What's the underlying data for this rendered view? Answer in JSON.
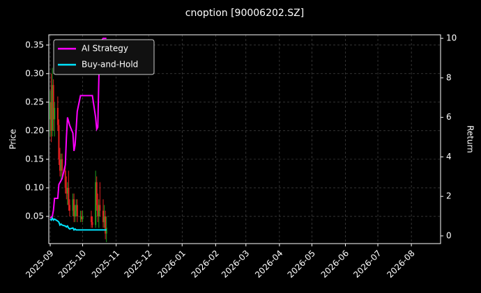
{
  "chart_data": {
    "type": "candlestick",
    "title": "cnoption [90006202.SZ]",
    "ylabel": "Price",
    "y2label": "Return",
    "x": [
      0,
      1,
      2,
      3,
      4,
      7,
      8,
      9,
      10,
      11,
      14,
      15,
      16,
      17,
      18,
      21,
      22,
      23,
      24,
      25,
      28,
      29,
      30,
      38,
      39,
      42,
      43,
      44,
      45,
      46,
      49,
      50,
      51,
      52
    ],
    "open": [
      0.22,
      0.25,
      0.2,
      0.28,
      0.22,
      0.24,
      0.21,
      0.15,
      0.13,
      0.15,
      0.13,
      0.1,
      0.09,
      0.1,
      0.07,
      0.06,
      0.08,
      0.05,
      0.06,
      0.07,
      0.05,
      0.05,
      0.045,
      0.05,
      0.04,
      0.035,
      0.11,
      0.07,
      0.05,
      0.07,
      0.06,
      0.04,
      0.05,
      0.02
    ],
    "high": [
      0.27,
      0.3,
      0.31,
      0.29,
      0.25,
      0.26,
      0.22,
      0.17,
      0.16,
      0.16,
      0.14,
      0.12,
      0.11,
      0.13,
      0.08,
      0.09,
      0.09,
      0.07,
      0.08,
      0.08,
      0.06,
      0.06,
      0.06,
      0.06,
      0.05,
      0.13,
      0.12,
      0.09,
      0.08,
      0.11,
      0.08,
      0.07,
      0.06,
      0.05
    ],
    "low": [
      0.19,
      0.18,
      0.19,
      0.2,
      0.19,
      0.2,
      0.14,
      0.12,
      0.11,
      0.12,
      0.09,
      0.08,
      0.07,
      0.06,
      0.05,
      0.05,
      0.04,
      0.04,
      0.05,
      0.04,
      0.04,
      0.04,
      0.04,
      0.03,
      0.03,
      0.03,
      0.06,
      0.04,
      0.03,
      0.05,
      0.03,
      0.03,
      0.01,
      0.005
    ],
    "close": [
      0.25,
      0.2,
      0.28,
      0.22,
      0.24,
      0.21,
      0.15,
      0.13,
      0.15,
      0.13,
      0.1,
      0.09,
      0.1,
      0.07,
      0.06,
      0.08,
      0.05,
      0.06,
      0.07,
      0.05,
      0.05,
      0.045,
      0.05,
      0.04,
      0.035,
      0.11,
      0.07,
      0.05,
      0.07,
      0.06,
      0.04,
      0.05,
      0.02,
      0.03
    ],
    "up_color": "#1f9e1f",
    "down_color": "#e02020",
    "series": [
      {
        "name": "AI Strategy",
        "color": "#ff00ff",
        "axis": "y2",
        "values": [
          0.9,
          0.95,
          1.0,
          1.3,
          1.9,
          1.9,
          2.6,
          2.7,
          2.8,
          2.9,
          3.6,
          5.0,
          6.0,
          5.8,
          5.6,
          5.2,
          4.3,
          4.6,
          5.4,
          6.3,
          7.1,
          7.1,
          7.1,
          7.1,
          7.1,
          6.0,
          5.4,
          5.5,
          8.0,
          9.8,
          10.0,
          10.0,
          10.0,
          10.0
        ]
      },
      {
        "name": "Buy-and-Hold",
        "color": "#00e5ff",
        "axis": "y2",
        "values": [
          0.85,
          0.8,
          0.9,
          0.8,
          0.85,
          0.75,
          0.7,
          0.55,
          0.6,
          0.55,
          0.5,
          0.45,
          0.5,
          0.4,
          0.35,
          0.4,
          0.3,
          0.35,
          0.3,
          0.3,
          0.3,
          0.3,
          0.3,
          0.3,
          0.3,
          0.3,
          0.3,
          0.3,
          0.3,
          0.3,
          0.3,
          0.3,
          0.3,
          0.3
        ]
      }
    ],
    "xlim": [
      -1.3,
      361
    ],
    "xticks": [
      {
        "value": 0,
        "label": "2025-09"
      },
      {
        "value": 30,
        "label": "2025-10"
      },
      {
        "value": 61,
        "label": "2025-11"
      },
      {
        "value": 91,
        "label": "2025-12"
      },
      {
        "value": 122,
        "label": "2026-01"
      },
      {
        "value": 153,
        "label": "2026-02"
      },
      {
        "value": 181,
        "label": "2026-03"
      },
      {
        "value": 212,
        "label": "2026-04"
      },
      {
        "value": 242,
        "label": "2026-05"
      },
      {
        "value": 273,
        "label": "2026-06"
      },
      {
        "value": 303,
        "label": "2026-07"
      },
      {
        "value": 334,
        "label": "2026-08"
      }
    ],
    "ylim": [
      0.0024,
      0.368
    ],
    "yticks": [
      0.05,
      {
        "value": 0.1,
        "label": "0.10"
      },
      0.15,
      {
        "value": 0.2,
        "label": "0.20"
      },
      0.25,
      {
        "value": 0.3,
        "label": "0.30"
      },
      0.35
    ],
    "y2lim": [
      -0.39,
      10.18
    ],
    "y2ticks": [
      0,
      2,
      4,
      6,
      8,
      10
    ],
    "grid": true,
    "legend": "upper left"
  }
}
